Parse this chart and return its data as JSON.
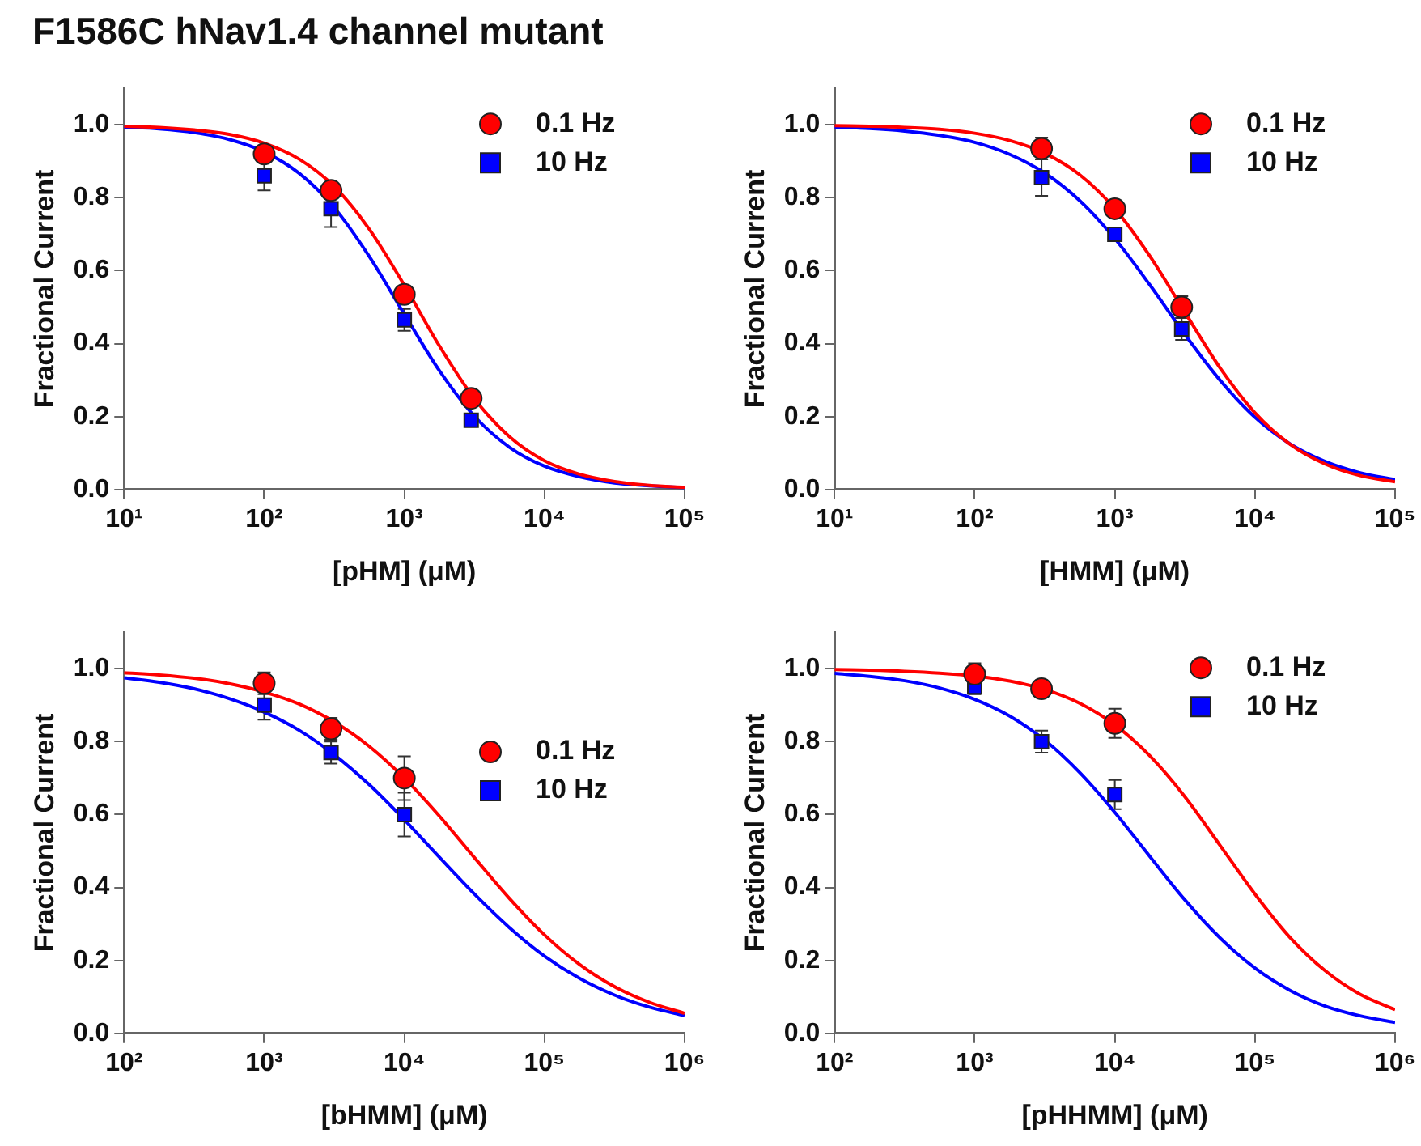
{
  "chart_data": [
    {
      "type": "scatter",
      "title": "F1586C hNav1.4 channel mutant",
      "xlabel": "[pHM] (μM)",
      "ylabel": "Fractional Current",
      "log": "x",
      "grid": false,
      "legend": "top right",
      "xlim": [
        10,
        100000
      ],
      "xticks": [
        {
          "value": 10,
          "label": "10¹"
        },
        {
          "value": 100,
          "label": "10²"
        },
        {
          "value": 1000,
          "label": "10³"
        },
        {
          "value": 10000,
          "label": "10⁴"
        },
        {
          "value": 100000,
          "label": "10⁵"
        }
      ],
      "ylim": [
        0,
        1.1
      ],
      "yticks": [
        {
          "value": 0,
          "label": "0.0"
        },
        {
          "value": 0.2,
          "label": "0.2"
        },
        {
          "value": 0.4,
          "label": "0.4"
        },
        {
          "value": 0.6,
          "label": "0.6"
        },
        {
          "value": 0.8,
          "label": "0.8"
        },
        {
          "value": 1,
          "label": "1.0"
        }
      ],
      "series": [
        {
          "name": "0.1 Hz",
          "color": "#ff0000",
          "marker": "circle",
          "x": [
            100,
            300,
            1000,
            3000
          ],
          "values": [
            0.92,
            0.82,
            0.535,
            0.25
          ]
        },
        {
          "name": "10 Hz",
          "color": "#0000ff",
          "marker": "square",
          "x": [
            100,
            300,
            1000,
            3000
          ],
          "values": [
            0.86,
            0.77,
            0.465,
            0.19
          ],
          "errors": [
            0.04,
            0.05,
            0.03,
            0.01
          ]
        },
        {
          "type": "line",
          "color": "#ff0000",
          "marker": "none",
          "x": [
            10,
            17.78,
            31.62,
            56.23,
            100,
            177.8,
            316.2,
            562.3,
            1000,
            1778,
            3162,
            5623,
            10000,
            17783,
            31623,
            56234,
            100000
          ],
          "values": [
            0.996,
            0.993,
            0.986,
            0.974,
            0.95,
            0.906,
            0.831,
            0.714,
            0.56,
            0.394,
            0.249,
            0.145,
            0.079,
            0.042,
            0.022,
            0.011,
            0.006
          ]
        },
        {
          "type": "line",
          "color": "#0000ff",
          "marker": "none",
          "x": [
            10,
            17.78,
            31.62,
            56.23,
            100,
            177.8,
            316.2,
            562.3,
            1000,
            1778,
            3162,
            5623,
            10000,
            17783,
            31623,
            56234,
            100000
          ],
          "values": [
            0.994,
            0.989,
            0.979,
            0.96,
            0.926,
            0.867,
            0.773,
            0.639,
            0.481,
            0.326,
            0.201,
            0.116,
            0.064,
            0.035,
            0.018,
            0.01,
            0.005
          ]
        }
      ]
    },
    {
      "type": "scatter",
      "xlabel": "[HMM] (μM)",
      "ylabel": "Fractional Current",
      "log": "x",
      "grid": false,
      "legend": "top right",
      "xlim": [
        10,
        100000
      ],
      "xticks": [
        {
          "value": 10,
          "label": "10¹"
        },
        {
          "value": 100,
          "label": "10²"
        },
        {
          "value": 1000,
          "label": "10³"
        },
        {
          "value": 10000,
          "label": "10⁴"
        },
        {
          "value": 100000,
          "label": "10⁵"
        }
      ],
      "ylim": [
        0,
        1.1
      ],
      "yticks": [
        {
          "value": 0,
          "label": "0.0"
        },
        {
          "value": 0.2,
          "label": "0.2"
        },
        {
          "value": 0.4,
          "label": "0.4"
        },
        {
          "value": 0.6,
          "label": "0.6"
        },
        {
          "value": 0.8,
          "label": "0.8"
        },
        {
          "value": 1,
          "label": "1.0"
        }
      ],
      "series": [
        {
          "name": "0.1 Hz",
          "color": "#ff0000",
          "marker": "circle",
          "x": [
            300,
            1000,
            3000
          ],
          "values": [
            0.935,
            0.77,
            0.5
          ],
          "errors": [
            0.03,
            null,
            0.03
          ]
        },
        {
          "name": "10 Hz",
          "color": "#0000ff",
          "marker": "square",
          "x": [
            300,
            1000,
            3000
          ],
          "values": [
            0.855,
            0.7,
            0.44
          ],
          "errors": [
            0.05,
            0.01,
            0.03
          ]
        },
        {
          "type": "line",
          "color": "#ff0000",
          "marker": "none",
          "x": [
            10,
            17.78,
            31.62,
            56.23,
            100,
            177.8,
            316.2,
            562.3,
            1000,
            1778,
            3162,
            5623,
            10000,
            17783,
            31623,
            56234,
            100000
          ],
          "values": [
            0.998,
            0.996,
            0.993,
            0.988,
            0.977,
            0.957,
            0.922,
            0.863,
            0.77,
            0.64,
            0.486,
            0.334,
            0.21,
            0.124,
            0.07,
            0.038,
            0.021
          ]
        },
        {
          "type": "line",
          "color": "#0000ff",
          "marker": "none",
          "x": [
            10,
            17.78,
            31.62,
            56.23,
            100,
            177.8,
            316.2,
            562.3,
            1000,
            1778,
            3162,
            5623,
            10000,
            17783,
            31623,
            56234,
            100000
          ],
          "values": [
            0.994,
            0.99,
            0.983,
            0.971,
            0.952,
            0.919,
            0.868,
            0.792,
            0.688,
            0.561,
            0.425,
            0.3,
            0.198,
            0.125,
            0.077,
            0.046,
            0.027
          ]
        }
      ]
    },
    {
      "type": "scatter",
      "xlabel": "[bHMM] (μM)",
      "ylabel": "Fractional Current",
      "log": "x",
      "grid": false,
      "legend": "right",
      "xlim": [
        100,
        1000000
      ],
      "xticks": [
        {
          "value": 100,
          "label": "10²"
        },
        {
          "value": 1000,
          "label": "10³"
        },
        {
          "value": 10000,
          "label": "10⁴"
        },
        {
          "value": 100000,
          "label": "10⁵"
        },
        {
          "value": 1000000,
          "label": "10⁶"
        }
      ],
      "ylim": [
        0,
        1.1
      ],
      "yticks": [
        {
          "value": 0,
          "label": "0.0"
        },
        {
          "value": 0.2,
          "label": "0.2"
        },
        {
          "value": 0.4,
          "label": "0.4"
        },
        {
          "value": 0.6,
          "label": "0.6"
        },
        {
          "value": 0.8,
          "label": "0.8"
        },
        {
          "value": 1,
          "label": "1.0"
        }
      ],
      "series": [
        {
          "name": "0.1 Hz",
          "color": "#ff0000",
          "marker": "circle",
          "x": [
            1000,
            3000,
            10000
          ],
          "values": [
            0.96,
            0.835,
            0.7
          ],
          "errors": [
            0.03,
            0.03,
            0.06
          ]
        },
        {
          "name": "10 Hz",
          "color": "#0000ff",
          "marker": "square",
          "x": [
            1000,
            3000,
            10000
          ],
          "values": [
            0.9,
            0.77,
            0.6
          ],
          "errors": [
            0.04,
            0.03,
            0.06
          ]
        },
        {
          "type": "line",
          "color": "#ff0000",
          "marker": "none",
          "x": [
            100,
            177.8,
            316.2,
            562.3,
            1000,
            1778,
            3162,
            5623,
            10000,
            17783,
            31623,
            56234,
            100000,
            177828,
            316228,
            562341,
            1000000
          ],
          "values": [
            0.989,
            0.983,
            0.974,
            0.959,
            0.936,
            0.903,
            0.854,
            0.787,
            0.7,
            0.596,
            0.482,
            0.37,
            0.27,
            0.189,
            0.128,
            0.085,
            0.055
          ]
        },
        {
          "type": "line",
          "color": "#0000ff",
          "marker": "none",
          "x": [
            100,
            177.8,
            316.2,
            562.3,
            1000,
            1778,
            3162,
            5623,
            10000,
            17783,
            31623,
            56234,
            100000,
            177828,
            316228,
            562341,
            1000000
          ],
          "values": [
            0.975,
            0.963,
            0.945,
            0.918,
            0.881,
            0.831,
            0.764,
            0.682,
            0.586,
            0.483,
            0.382,
            0.29,
            0.212,
            0.151,
            0.105,
            0.072,
            0.049
          ]
        }
      ]
    },
    {
      "type": "scatter",
      "xlabel": "[pHHMM] (μM)",
      "ylabel": "Fractional Current",
      "log": "x",
      "grid": false,
      "legend": "top right",
      "xlim": [
        100,
        1000000
      ],
      "xticks": [
        {
          "value": 100,
          "label": "10²"
        },
        {
          "value": 1000,
          "label": "10³"
        },
        {
          "value": 10000,
          "label": "10⁴"
        },
        {
          "value": 100000,
          "label": "10⁵"
        },
        {
          "value": 1000000,
          "label": "10⁶"
        }
      ],
      "ylim": [
        0,
        1.1
      ],
      "yticks": [
        {
          "value": 0,
          "label": "0.0"
        },
        {
          "value": 0.2,
          "label": "0.2"
        },
        {
          "value": 0.4,
          "label": "0.4"
        },
        {
          "value": 0.6,
          "label": "0.6"
        },
        {
          "value": 0.8,
          "label": "0.8"
        },
        {
          "value": 1,
          "label": "1.0"
        }
      ],
      "series": [
        {
          "name": "0.1 Hz",
          "color": "#ff0000",
          "marker": "circle",
          "x": [
            1000,
            3000,
            10000
          ],
          "values": [
            0.985,
            0.945,
            0.85
          ],
          "errors": [
            0.03,
            null,
            0.04
          ]
        },
        {
          "name": "10 Hz",
          "color": "#0000ff",
          "marker": "square",
          "x": [
            1000,
            3000,
            10000
          ],
          "values": [
            0.95,
            0.8,
            0.655
          ],
          "errors": [
            0.02,
            0.03,
            0.04
          ]
        },
        {
          "type": "line",
          "color": "#ff0000",
          "marker": "none",
          "x": [
            100,
            177.8,
            316.2,
            562.3,
            1000,
            1778,
            3162,
            5623,
            10000,
            17783,
            31623,
            56234,
            100000,
            177828,
            316228,
            562341,
            1000000
          ],
          "values": [
            0.998,
            0.996,
            0.993,
            0.988,
            0.98,
            0.966,
            0.943,
            0.905,
            0.846,
            0.761,
            0.649,
            0.516,
            0.382,
            0.263,
            0.172,
            0.107,
            0.065
          ]
        },
        {
          "type": "line",
          "color": "#0000ff",
          "marker": "none",
          "x": [
            100,
            177.8,
            316.2,
            562.3,
            1000,
            1778,
            3162,
            5623,
            10000,
            17783,
            31623,
            56234,
            100000,
            177828,
            316228,
            562341,
            1000000
          ],
          "values": [
            0.987,
            0.979,
            0.967,
            0.947,
            0.916,
            0.87,
            0.804,
            0.715,
            0.606,
            0.485,
            0.366,
            0.262,
            0.179,
            0.118,
            0.075,
            0.048,
            0.03
          ]
        }
      ]
    }
  ]
}
